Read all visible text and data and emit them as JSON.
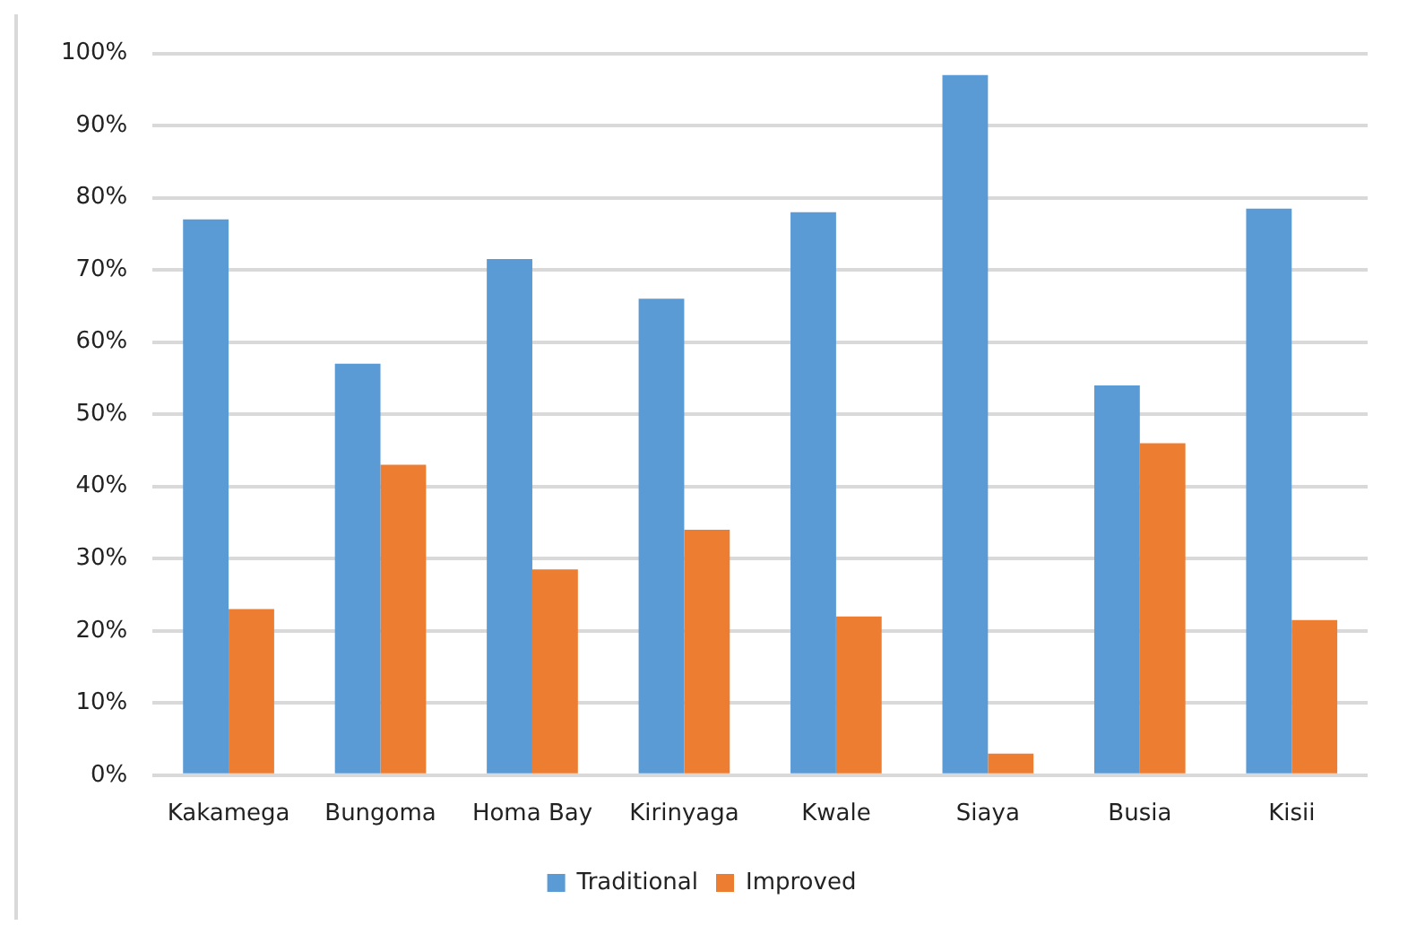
{
  "chart_data": {
    "type": "bar",
    "categories": [
      "Kakamega",
      "Bungoma",
      "Homa Bay",
      "Kirinyaga",
      "Kwale",
      "Siaya",
      "Busia",
      "Kisii"
    ],
    "series": [
      {
        "name": "Traditional",
        "color": "#5b9bd5",
        "values": [
          77,
          57,
          71.5,
          66,
          78,
          97,
          54,
          78.5
        ]
      },
      {
        "name": "Improved",
        "color": "#ed7d31",
        "values": [
          23,
          43,
          28.5,
          34,
          22,
          3,
          46,
          21.5
        ]
      }
    ],
    "ylim": [
      0,
      100
    ],
    "yticks": [
      {
        "value": 0,
        "label": "0%"
      },
      {
        "value": 10,
        "label": "10%"
      },
      {
        "value": 20,
        "label": "20%"
      },
      {
        "value": 30,
        "label": "30%"
      },
      {
        "value": 40,
        "label": "40%"
      },
      {
        "value": 50,
        "label": "50%"
      },
      {
        "value": 60,
        "label": "60%"
      },
      {
        "value": 70,
        "label": "70%"
      },
      {
        "value": 80,
        "label": "80%"
      },
      {
        "value": 90,
        "label": "90%"
      },
      {
        "value": 100,
        "label": "100%"
      }
    ],
    "grid": "y",
    "legend": "bottom"
  }
}
